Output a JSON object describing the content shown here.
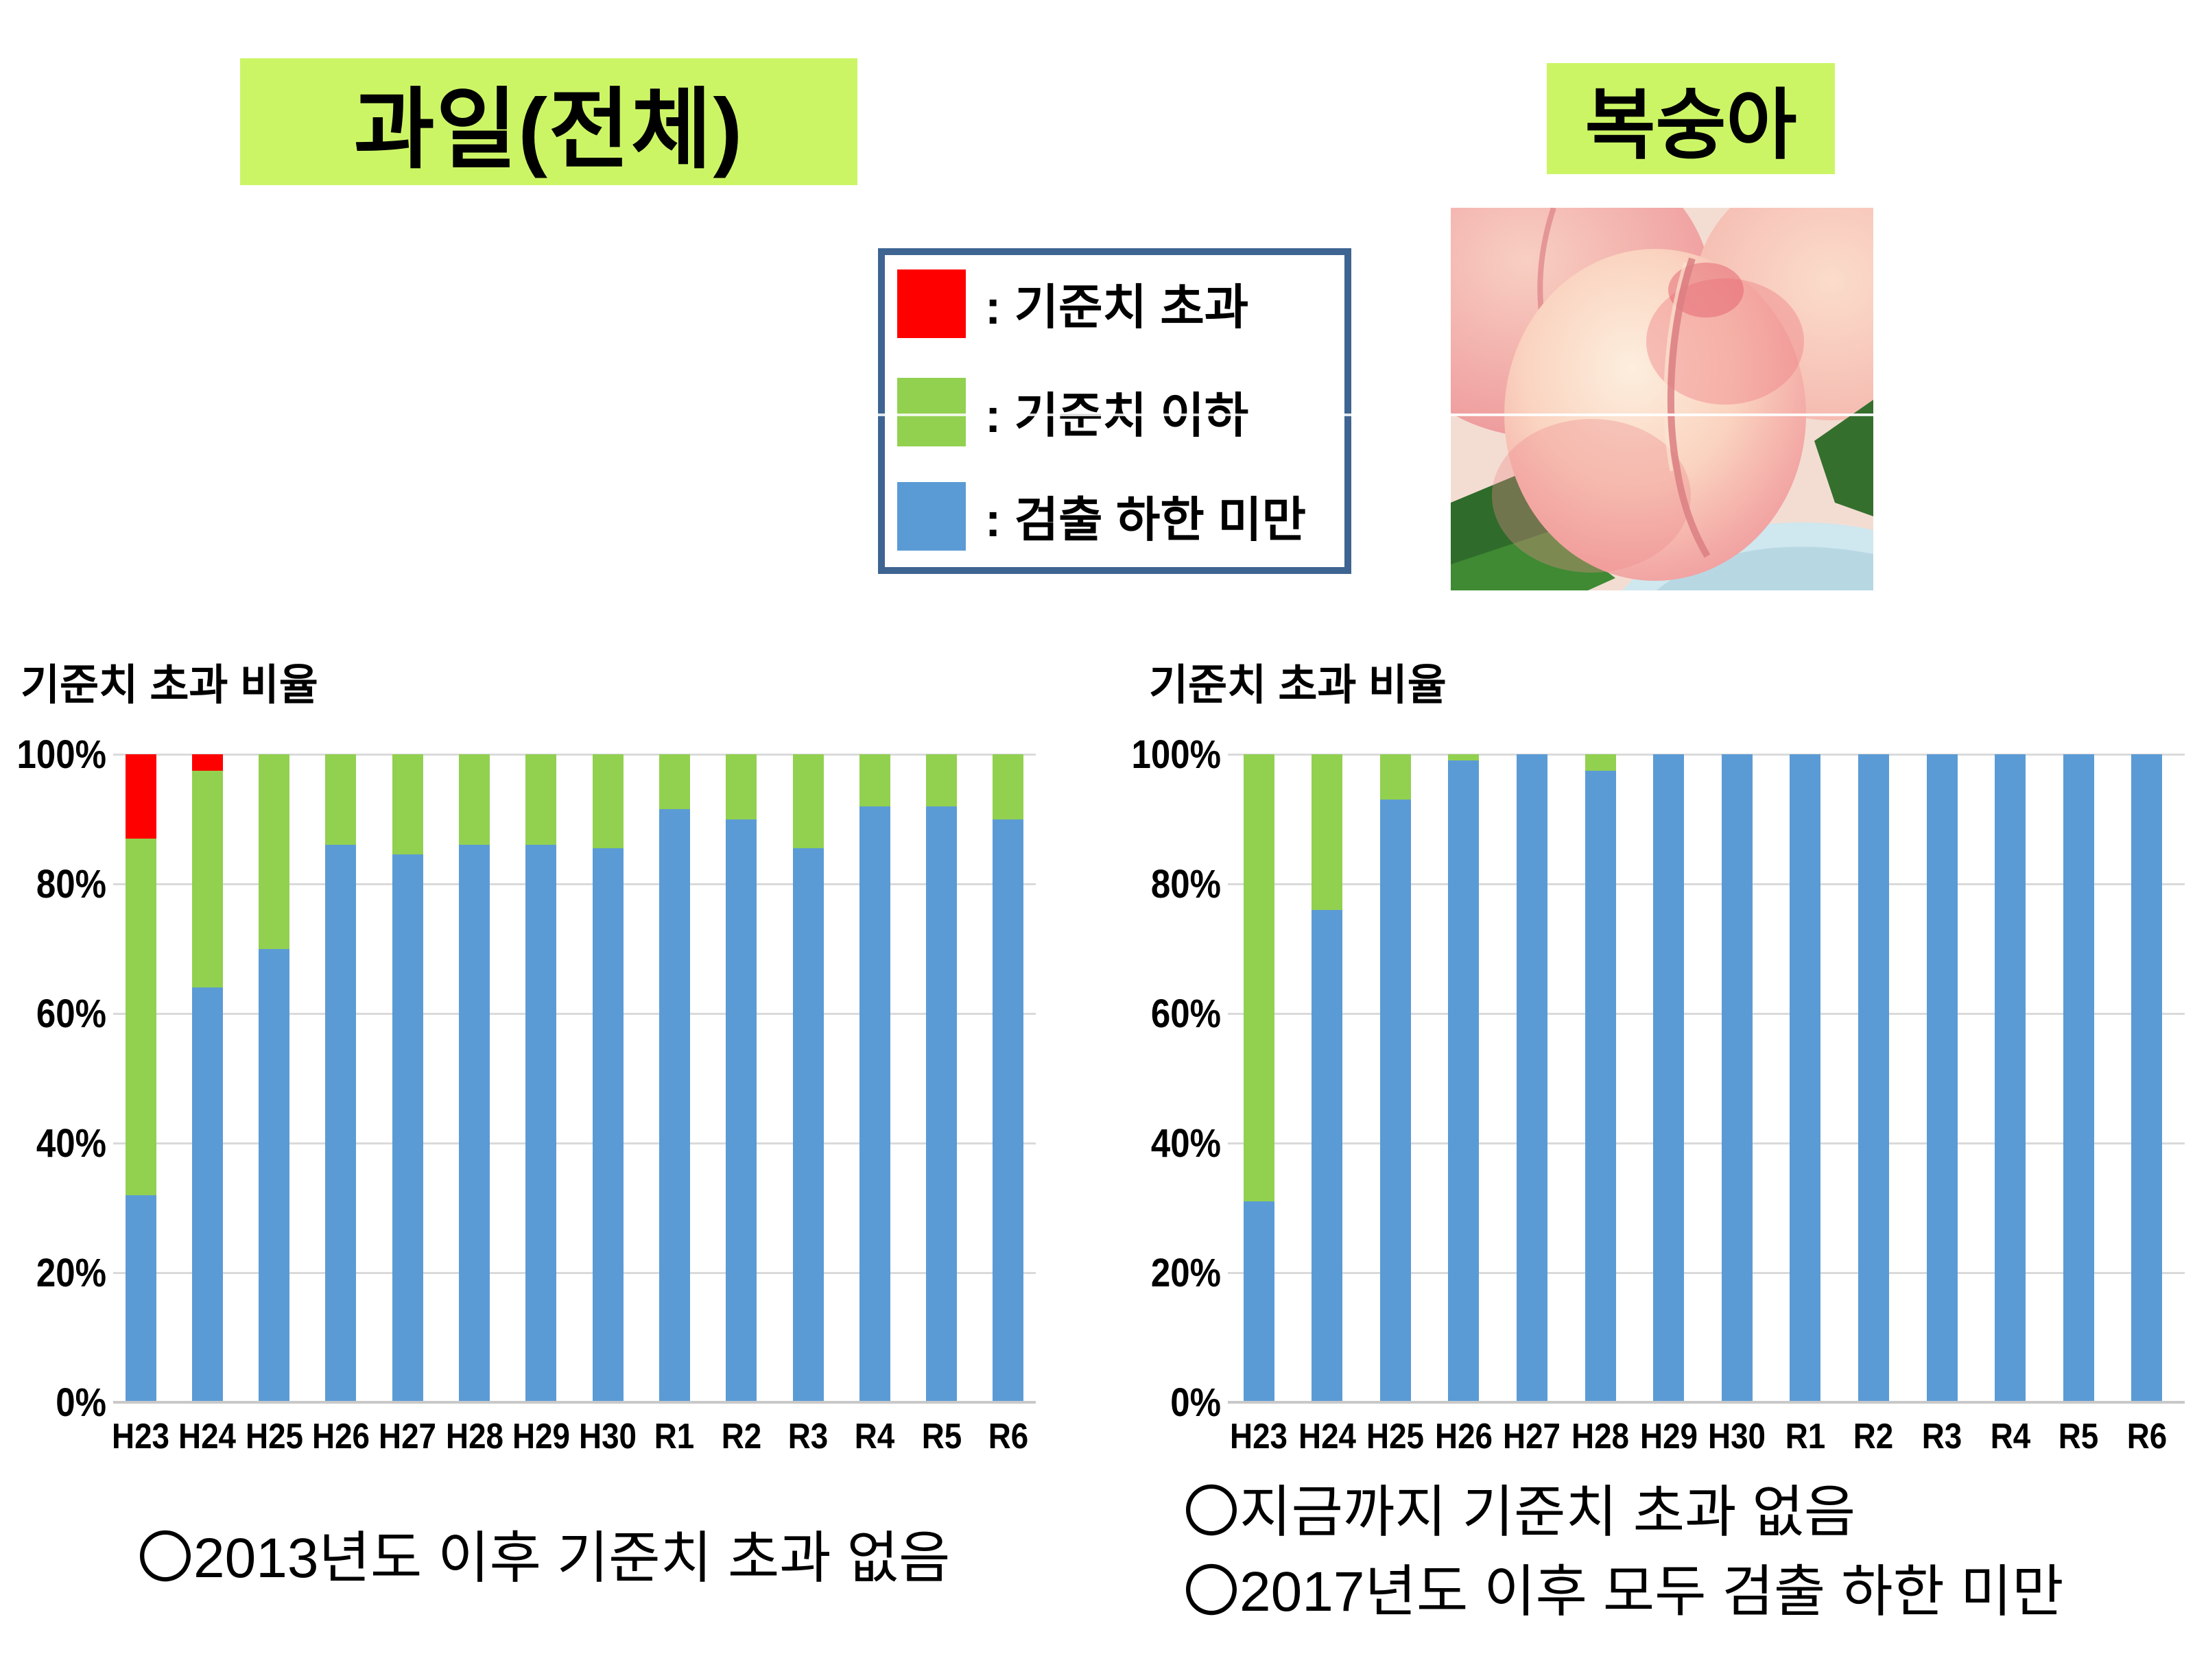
{
  "slide": {
    "left_title": "과일(전체)",
    "right_title": "복숭아",
    "legend": {
      "border_color": "#3e6491",
      "items": [
        {
          "label": ": 기준치 초과",
          "color": "#ff0000",
          "meaning": "exceeds-standard"
        },
        {
          "label": ": 기준치 이하",
          "color": "#92d050",
          "meaning": "below-standard"
        },
        {
          "label": ": 검출 하한 미만",
          "color": "#5b9bd5",
          "meaning": "below-detection-limit"
        }
      ]
    },
    "notes_left": [
      "〇2013년도 이후 기준치 초과 없음"
    ],
    "notes_right": [
      "〇지금까지 기준치 초과 없음",
      "〇2017년도 이후 모두 검출 하한 미만"
    ]
  },
  "chart_data": [
    {
      "type": "bar",
      "stacked": true,
      "title": "기준치 초과 비율",
      "subject": "과일(전체)",
      "categories": [
        "H23",
        "H24",
        "H25",
        "H26",
        "H27",
        "H28",
        "H29",
        "H30",
        "R1",
        "R2",
        "R3",
        "R4",
        "R5",
        "R6"
      ],
      "yticks": [
        "0%",
        "20%",
        "40%",
        "60%",
        "80%",
        "100%"
      ],
      "ylim": [
        0,
        100
      ],
      "grid": true,
      "legend_position": "none",
      "series": [
        {
          "name": "검출 하한 미만",
          "color": "#5b9bd5",
          "values": [
            32,
            64,
            70,
            86,
            84.5,
            86,
            86,
            85.5,
            91.5,
            90,
            85.5,
            92,
            92,
            90
          ]
        },
        {
          "name": "기준치 이하",
          "color": "#92d050",
          "values": [
            55,
            33.5,
            30,
            14,
            15.5,
            14,
            14,
            14.5,
            8.5,
            10,
            14.5,
            8,
            8,
            10
          ]
        },
        {
          "name": "기준치 초과",
          "color": "#ff0000",
          "values": [
            13,
            2.5,
            0,
            0,
            0,
            0,
            0,
            0,
            0,
            0,
            0,
            0,
            0,
            0
          ]
        }
      ]
    },
    {
      "type": "bar",
      "stacked": true,
      "title": "기준치 초과 비율",
      "subject": "복숭아",
      "categories": [
        "H23",
        "H24",
        "H25",
        "H26",
        "H27",
        "H28",
        "H29",
        "H30",
        "R1",
        "R2",
        "R3",
        "R4",
        "R5",
        "R6"
      ],
      "yticks": [
        "0%",
        "20%",
        "40%",
        "60%",
        "80%",
        "100%"
      ],
      "ylim": [
        0,
        100
      ],
      "grid": true,
      "legend_position": "none",
      "series": [
        {
          "name": "검출 하한 미만",
          "color": "#5b9bd5",
          "values": [
            31,
            76,
            93,
            99,
            100,
            97.5,
            100,
            100,
            100,
            100,
            100,
            100,
            100,
            100
          ]
        },
        {
          "name": "기준치 이하",
          "color": "#92d050",
          "values": [
            69,
            24,
            7,
            1,
            0,
            2.5,
            0,
            0,
            0,
            0,
            0,
            0,
            0,
            0
          ]
        },
        {
          "name": "기준치 초과",
          "color": "#ff0000",
          "values": [
            0,
            0,
            0,
            0,
            0,
            0,
            0,
            0,
            0,
            0,
            0,
            0,
            0,
            0
          ]
        }
      ]
    }
  ]
}
